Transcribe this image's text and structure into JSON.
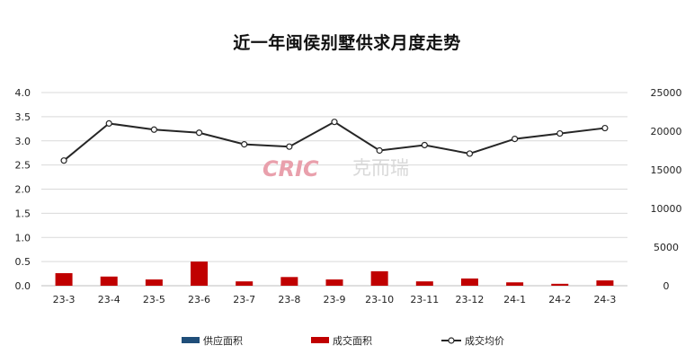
{
  "chart_data": {
    "type": "bar",
    "title": "近一年闽侯别墅供求月度走势",
    "categories": [
      "23-3",
      "23-4",
      "23-5",
      "23-6",
      "23-7",
      "23-8",
      "23-9",
      "23-10",
      "23-11",
      "23-12",
      "24-1",
      "24-2",
      "24-3"
    ],
    "left_axis": {
      "min": 0,
      "max": 4.0,
      "ticks": [
        "0.0",
        "0.5",
        "1.0",
        "1.5",
        "2.0",
        "2.5",
        "3.0",
        "3.5",
        "4.0"
      ]
    },
    "right_axis": {
      "min": 0,
      "max": 25000,
      "ticks": [
        "0",
        "5000",
        "10000",
        "15000",
        "20000",
        "25000"
      ]
    },
    "grid": true,
    "legend_position": "bottom",
    "series": [
      {
        "name": "供应面积",
        "type": "bar",
        "axis": "left",
        "color": "#1f4e79",
        "values": [
          0,
          0,
          0,
          0,
          0,
          0,
          0,
          0,
          0,
          0,
          0,
          0,
          0
        ]
      },
      {
        "name": "成交面积",
        "type": "bar",
        "axis": "left",
        "color": "#c00000",
        "values": [
          0.26,
          0.19,
          0.13,
          0.5,
          0.09,
          0.18,
          0.13,
          0.3,
          0.09,
          0.15,
          0.07,
          0.04,
          0.11
        ]
      },
      {
        "name": "成交均价",
        "type": "line",
        "axis": "right",
        "color": "#262626",
        "values": [
          16200,
          21000,
          20200,
          19800,
          18300,
          18000,
          21200,
          17500,
          18200,
          17100,
          19000,
          19700,
          20400
        ]
      }
    ]
  },
  "watermark": {
    "latin": "CRIC",
    "cn": "克而瑞"
  }
}
